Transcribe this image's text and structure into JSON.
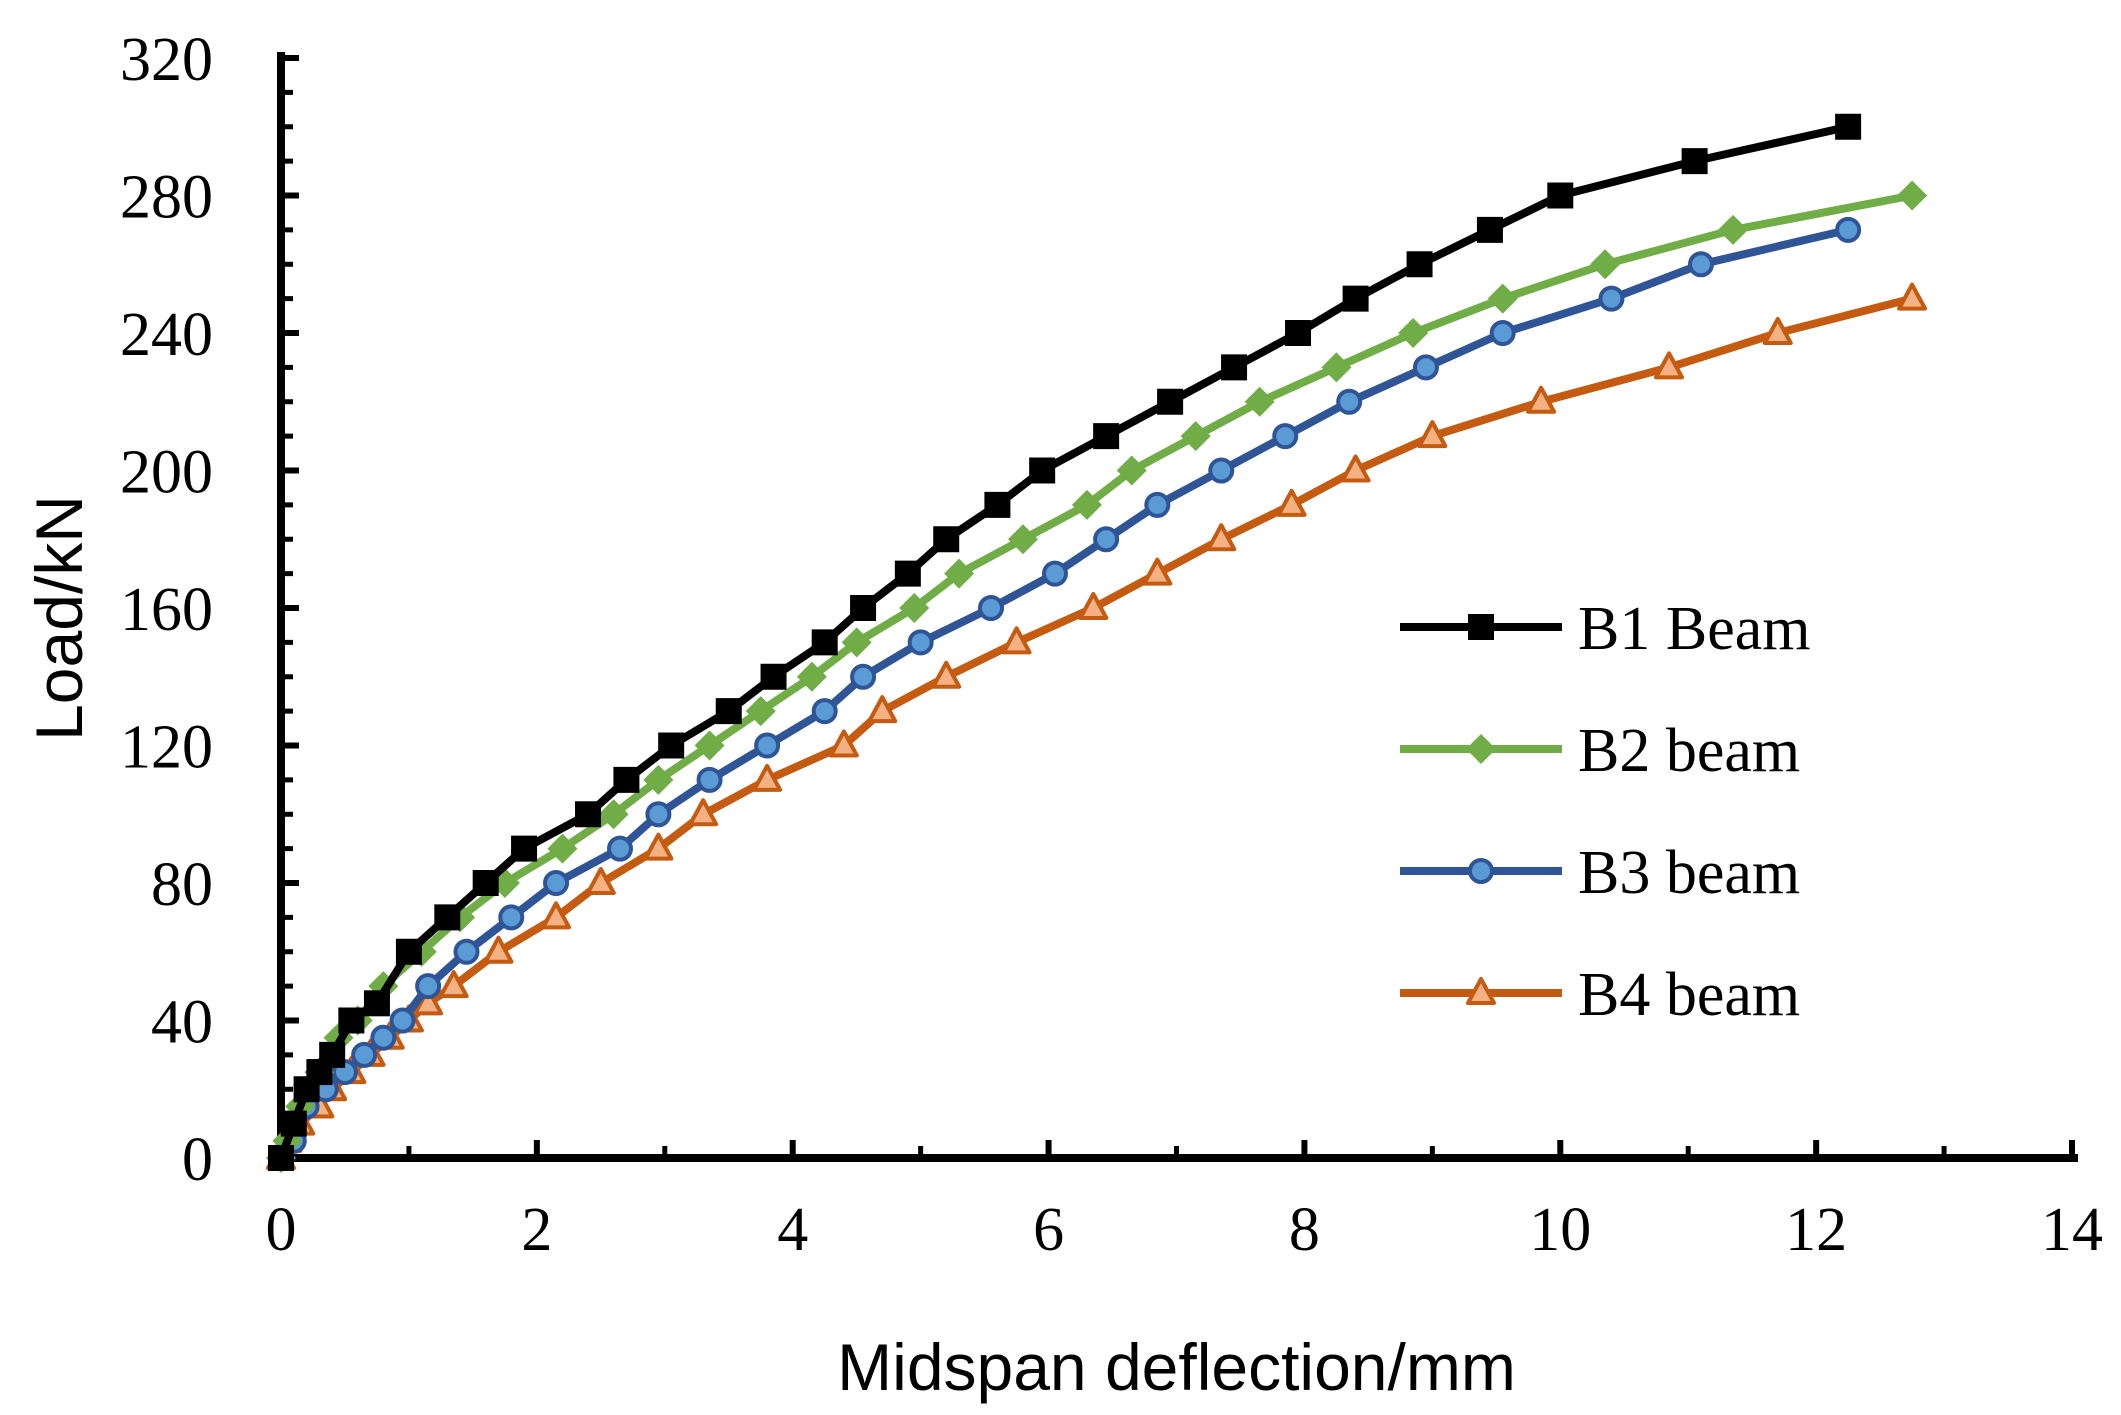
{
  "chart_data": {
    "type": "line",
    "title": "",
    "xlabel": "Midspan deflection/mm",
    "ylabel": "Load/kN",
    "xlim": [
      0,
      14
    ],
    "ylim": [
      0,
      320
    ],
    "x_ticks": [
      0,
      2,
      4,
      6,
      8,
      10,
      12,
      14
    ],
    "y_ticks": [
      0,
      40,
      80,
      120,
      160,
      200,
      240,
      280,
      320
    ],
    "x_tick_labels": [
      "0",
      "2",
      "4",
      "6",
      "8",
      "10",
      "12",
      "14"
    ],
    "y_tick_labels": [
      "0",
      "40",
      "80",
      "120",
      "160",
      "200",
      "240",
      "280",
      "320"
    ],
    "grid": false,
    "legend_position": "right-middle",
    "series": [
      {
        "name": "B1 Beam",
        "color": "#000000",
        "marker": "square",
        "x": [
          0,
          0.1,
          0.2,
          0.3,
          0.4,
          0.55,
          0.75,
          1.0,
          1.3,
          1.6,
          1.9,
          2.4,
          2.7,
          3.05,
          3.5,
          3.85,
          4.25,
          4.55,
          4.9,
          5.2,
          5.6,
          5.95,
          6.45,
          6.95,
          7.45,
          7.95,
          8.4,
          8.9,
          9.45,
          10.0,
          11.05,
          12.25
        ],
        "y": [
          0,
          10,
          20,
          25,
          30,
          40,
          45,
          60,
          70,
          80,
          90,
          100,
          110,
          120,
          130,
          140,
          150,
          160,
          170,
          180,
          190,
          200,
          210,
          220,
          230,
          240,
          250,
          260,
          270,
          280,
          290,
          300
        ]
      },
      {
        "name": "B2 beam",
        "color": "#70AD47",
        "marker": "diamond",
        "x": [
          0,
          0.05,
          0.15,
          0.3,
          0.45,
          0.6,
          0.8,
          1.1,
          1.4,
          1.75,
          2.2,
          2.6,
          2.95,
          3.35,
          3.75,
          4.15,
          4.5,
          4.95,
          5.3,
          5.8,
          6.3,
          6.65,
          7.15,
          7.65,
          8.25,
          8.85,
          9.55,
          10.35,
          11.35,
          12.75
        ],
        "y": [
          0,
          5,
          15,
          25,
          35,
          40,
          50,
          60,
          70,
          80,
          90,
          100,
          110,
          120,
          130,
          140,
          150,
          160,
          170,
          180,
          190,
          200,
          210,
          220,
          230,
          240,
          250,
          260,
          270,
          280
        ]
      },
      {
        "name": "B3 beam",
        "color": "#2F5597",
        "marker": "circle",
        "x": [
          0,
          0.1,
          0.2,
          0.35,
          0.5,
          0.65,
          0.8,
          0.95,
          1.15,
          1.45,
          1.8,
          2.15,
          2.65,
          2.95,
          3.35,
          3.8,
          4.25,
          4.55,
          5.0,
          5.55,
          6.05,
          6.45,
          6.85,
          7.35,
          7.85,
          8.35,
          8.95,
          9.55,
          10.4,
          11.1,
          12.25
        ],
        "y": [
          0,
          5,
          15,
          20,
          25,
          30,
          35,
          40,
          50,
          60,
          70,
          80,
          90,
          100,
          110,
          120,
          130,
          140,
          150,
          160,
          170,
          180,
          190,
          200,
          210,
          220,
          230,
          240,
          250,
          260,
          270
        ]
      },
      {
        "name": "B4 beam",
        "color": "#C55A11",
        "marker": "triangle",
        "x": [
          0,
          0.05,
          0.15,
          0.3,
          0.4,
          0.55,
          0.7,
          0.85,
          1.0,
          1.15,
          1.35,
          1.7,
          2.15,
          2.5,
          2.95,
          3.3,
          3.8,
          4.4,
          4.7,
          5.2,
          5.75,
          6.35,
          6.85,
          7.35,
          7.9,
          8.4,
          9.0,
          9.85,
          10.85,
          11.7,
          12.75
        ],
        "y": [
          0,
          5,
          10,
          15,
          20,
          25,
          30,
          35,
          40,
          45,
          50,
          60,
          70,
          80,
          90,
          100,
          110,
          120,
          130,
          140,
          150,
          160,
          170,
          180,
          190,
          200,
          210,
          220,
          230,
          240,
          250
        ]
      }
    ]
  }
}
